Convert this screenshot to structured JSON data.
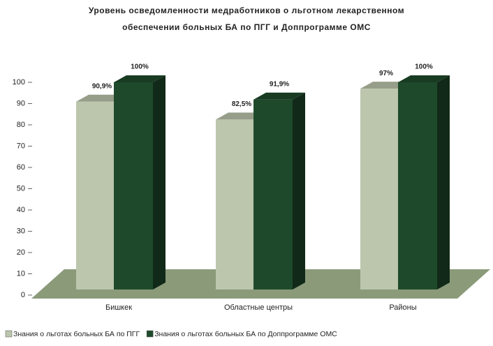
{
  "chart_data": {
    "type": "bar3d",
    "title": [
      "Уровень осведомленности медработников о льготном лекарственном",
      "обеспечении больных БА по ПГГ и Доппрограмме ОМС"
    ],
    "categories": [
      "Бишкек",
      "Областные центры",
      "Районы"
    ],
    "series": [
      {
        "name": "Знания о льготах больных БА по ПГГ",
        "color": "#bcc6ad",
        "values": [
          90.9,
          82.5,
          97
        ],
        "value_labels": [
          "90,9%",
          "82,5%",
          "97%"
        ]
      },
      {
        "name": "Знания о льготах больных БА по Доппрограмме ОМС",
        "color": "#1e4a2b",
        "values": [
          100,
          91.9,
          100
        ],
        "value_labels": [
          "100%",
          "91,9%",
          "100%"
        ]
      }
    ],
    "ylim": [
      0,
      100
    ],
    "yticks": [
      0,
      10,
      20,
      30,
      40,
      50,
      60,
      70,
      80,
      90,
      100
    ]
  }
}
